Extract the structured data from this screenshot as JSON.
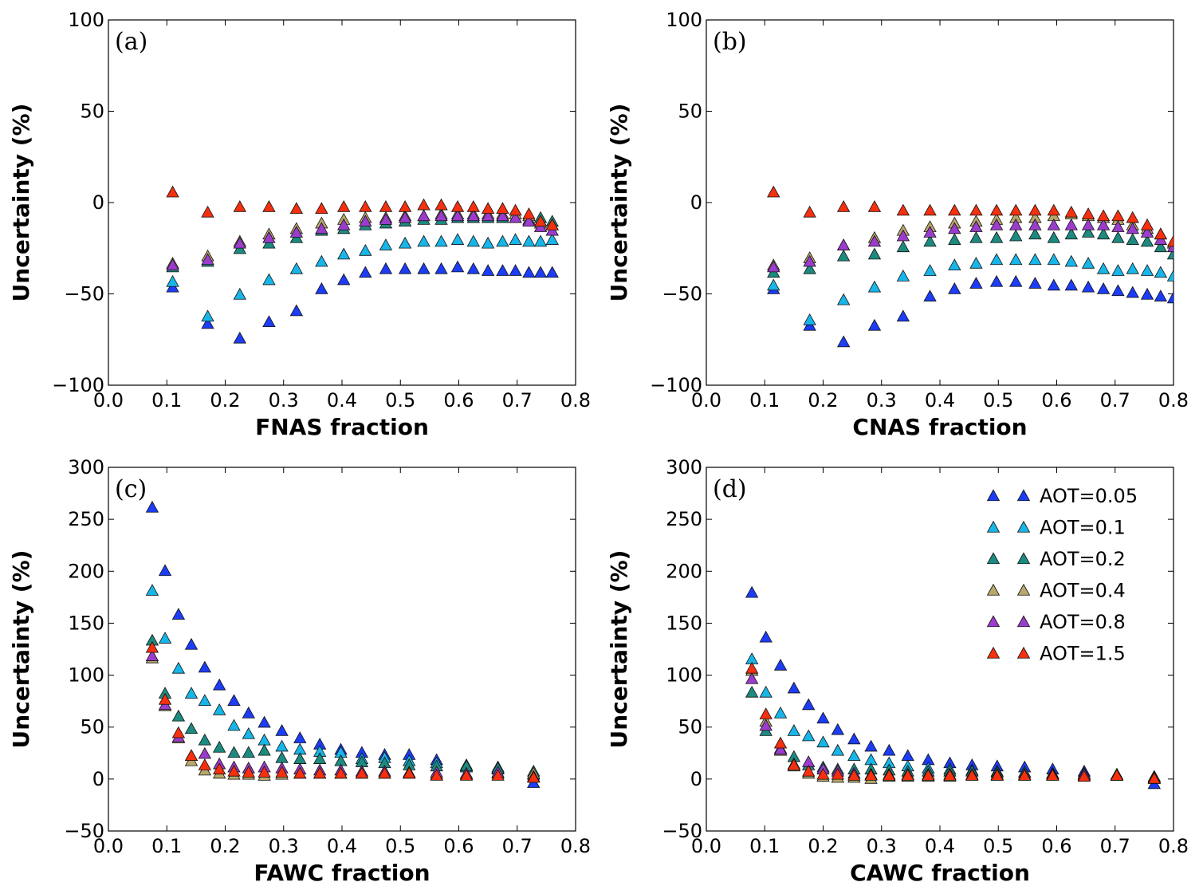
{
  "chart_data": [
    {
      "type": "scatter",
      "panel_label": "(a)",
      "xlabel": "FNAS fraction",
      "ylabel": "Uncertainty (%)",
      "xlim": [
        0.0,
        0.8
      ],
      "ylim": [
        -100,
        100
      ],
      "xticks": [
        "0.0",
        "0.1",
        "0.2",
        "0.3",
        "0.4",
        "0.5",
        "0.6",
        "0.7",
        "0.8"
      ],
      "yticks": [
        "100",
        "50",
        "0",
        "−50",
        "−100"
      ],
      "x": [
        0.11,
        0.17,
        0.225,
        0.275,
        0.322,
        0.365,
        0.403,
        0.44,
        0.475,
        0.508,
        0.54,
        0.57,
        0.598,
        0.625,
        0.65,
        0.675,
        0.697,
        0.72,
        0.74,
        0.76
      ],
      "series": [
        {
          "name": "AOT=0.05",
          "values": [
            -46,
            -66,
            -74,
            -65,
            -59,
            -47,
            -42,
            -38,
            -36,
            -36,
            -36,
            -36,
            -35,
            -36,
            -37,
            -37,
            -37,
            -38,
            -38,
            -38
          ]
        },
        {
          "name": "AOT=0.1",
          "values": [
            -43,
            -62,
            -50,
            -42,
            -36,
            -32,
            -28,
            -26,
            -23,
            -22,
            -21,
            -21,
            -20,
            -21,
            -22,
            -21,
            -20,
            -21,
            -21,
            -20
          ]
        },
        {
          "name": "AOT=0.2",
          "values": [
            -35,
            -32,
            -25,
            -22,
            -19,
            -15,
            -14,
            -12,
            -11,
            -10,
            -9,
            -9,
            -8,
            -8,
            -8,
            -8,
            -8,
            -9,
            -8,
            -10
          ]
        },
        {
          "name": "AOT=0.4",
          "values": [
            -33,
            -29,
            -21,
            -17,
            -14,
            -11,
            -9,
            -8,
            -8,
            -7,
            -7,
            -6,
            -6,
            -6,
            -6,
            -6,
            -6,
            -7,
            -11,
            -12
          ]
        },
        {
          "name": "AOT=0.8",
          "values": [
            -34,
            -31,
            -22,
            -19,
            -16,
            -14,
            -12,
            -10,
            -9,
            -8,
            -7,
            -7,
            -7,
            -7,
            -7,
            -7,
            -8,
            -10,
            -13,
            -15
          ]
        },
        {
          "name": "AOT=1.5",
          "values": [
            6,
            -5,
            -2,
            -2,
            -3,
            -3,
            -2,
            -2,
            -2,
            -2,
            -1,
            -1,
            -2,
            -2,
            -3,
            -3,
            -4,
            -6,
            -10,
            -12
          ]
        }
      ]
    },
    {
      "type": "scatter",
      "panel_label": "(b)",
      "xlabel": "CNAS fraction",
      "ylabel": "Uncertainty (%)",
      "xlim": [
        0.0,
        0.8
      ],
      "ylim": [
        -100,
        100
      ],
      "xticks": [
        "0.0",
        "0.1",
        "0.2",
        "0.3",
        "0.4",
        "0.5",
        "0.6",
        "0.7",
        "0.8"
      ],
      "yticks": [
        "100",
        "50",
        "0",
        "−50",
        "−100"
      ],
      "x": [
        0.115,
        0.177,
        0.235,
        0.288,
        0.337,
        0.383,
        0.425,
        0.462,
        0.497,
        0.53,
        0.563,
        0.595,
        0.625,
        0.654,
        0.68,
        0.705,
        0.73,
        0.755,
        0.778,
        0.8
      ],
      "series": [
        {
          "name": "AOT=0.05",
          "values": [
            -47,
            -67,
            -76,
            -67,
            -62,
            -51,
            -47,
            -44,
            -43,
            -43,
            -44,
            -45,
            -45,
            -46,
            -47,
            -48,
            -49,
            -50,
            -51,
            -52
          ]
        },
        {
          "name": "AOT=0.1",
          "values": [
            -45,
            -64,
            -53,
            -46,
            -40,
            -37,
            -34,
            -33,
            -31,
            -31,
            -31,
            -31,
            -32,
            -33,
            -36,
            -37,
            -36,
            -37,
            -38,
            -40
          ]
        },
        {
          "name": "AOT=0.2",
          "values": [
            -38,
            -36,
            -29,
            -28,
            -24,
            -21,
            -20,
            -19,
            -19,
            -18,
            -17,
            -19,
            -17,
            -16,
            -17,
            -19,
            -20,
            -21,
            -24,
            -28
          ]
        },
        {
          "name": "AOT=0.4",
          "values": [
            -34,
            -30,
            -23,
            -19,
            -15,
            -13,
            -11,
            -10,
            -9,
            -8,
            -8,
            -7,
            -6,
            -7,
            -8,
            -9,
            -12,
            -14,
            -17,
            -22
          ]
        },
        {
          "name": "AOT=0.8",
          "values": [
            -35,
            -32,
            -23,
            -21,
            -18,
            -16,
            -14,
            -13,
            -12,
            -12,
            -12,
            -12,
            -12,
            -12,
            -12,
            -13,
            -14,
            -16,
            -20,
            -24
          ]
        },
        {
          "name": "AOT=1.5",
          "values": [
            6,
            -5,
            -2,
            -2,
            -4,
            -4,
            -4,
            -4,
            -4,
            -4,
            -4,
            -4,
            -5,
            -6,
            -7,
            -7,
            -8,
            -12,
            -17,
            -21
          ]
        }
      ]
    },
    {
      "type": "scatter",
      "panel_label": "(c)",
      "xlabel": "FAWC fraction",
      "ylabel": "Uncertainty (%)",
      "xlim": [
        0.0,
        0.8
      ],
      "ylim": [
        -50,
        300
      ],
      "xticks": [
        "0.0",
        "0.1",
        "0.2",
        "0.3",
        "0.4",
        "0.5",
        "0.6",
        "0.7",
        "0.8"
      ],
      "yticks": [
        "300",
        "250",
        "200",
        "150",
        "100",
        "50",
        "0",
        "−50"
      ],
      "x": [
        0.075,
        0.097,
        0.12,
        0.142,
        0.165,
        0.19,
        0.215,
        0.24,
        0.267,
        0.297,
        0.328,
        0.362,
        0.398,
        0.434,
        0.473,
        0.515,
        0.562,
        0.613,
        0.667,
        0.728
      ],
      "series": [
        {
          "name": "AOT=0.05",
          "values": [
            262,
            201,
            159,
            130,
            108,
            91,
            76,
            64,
            55,
            47,
            40,
            34,
            29,
            26,
            24,
            24,
            19,
            14,
            12,
            -3
          ]
        },
        {
          "name": "AOT=0.1",
          "values": [
            182,
            136,
            107,
            83,
            76,
            67,
            52,
            44,
            38,
            32,
            29,
            27,
            26,
            20,
            21,
            18,
            16,
            12,
            10,
            5
          ]
        },
        {
          "name": "AOT=0.2",
          "values": [
            134,
            83,
            61,
            49,
            38,
            31,
            26,
            26,
            28,
            21,
            20,
            20,
            18,
            17,
            16,
            14,
            13,
            13,
            11,
            8
          ]
        },
        {
          "name": "AOT=0.4",
          "values": [
            117,
            71,
            40,
            18,
            9,
            6,
            5,
            5,
            4,
            5,
            6,
            6,
            6,
            6,
            6,
            6,
            5,
            5,
            6,
            6
          ]
        },
        {
          "name": "AOT=0.8",
          "values": [
            119,
            72,
            41,
            23,
            25,
            15,
            12,
            11,
            12,
            11,
            10,
            9,
            9,
            8,
            8,
            7,
            7,
            6,
            7,
            3
          ]
        },
        {
          "name": "AOT=1.5",
          "values": [
            127,
            77,
            45,
            23,
            14,
            10,
            8,
            7,
            7,
            7,
            6,
            6,
            6,
            6,
            6,
            6,
            4,
            4,
            4,
            2
          ]
        }
      ]
    },
    {
      "type": "scatter",
      "panel_label": "(d)",
      "xlabel": "CAWC fraction",
      "ylabel": "Uncertainty (%)",
      "xlim": [
        0.0,
        0.8
      ],
      "ylim": [
        -50,
        300
      ],
      "xticks": [
        "0.0",
        "0.1",
        "0.2",
        "0.3",
        "0.4",
        "0.5",
        "0.6",
        "0.7",
        "0.8"
      ],
      "yticks": [
        "300",
        "250",
        "200",
        "150",
        "100",
        "50",
        "0",
        "−50"
      ],
      "legend_position": "top-right",
      "x": [
        0.078,
        0.102,
        0.127,
        0.15,
        0.175,
        0.2,
        0.225,
        0.253,
        0.282,
        0.313,
        0.345,
        0.38,
        0.417,
        0.455,
        0.498,
        0.545,
        0.593,
        0.647,
        0.703,
        0.767
      ],
      "series": [
        {
          "name": "AOT=0.05",
          "values": [
            180,
            137,
            110,
            88,
            72,
            59,
            48,
            39,
            32,
            28,
            23,
            19,
            16,
            14,
            13,
            12,
            10,
            8,
            5,
            -4
          ]
        },
        {
          "name": "AOT=0.1",
          "values": [
            116,
            84,
            64,
            47,
            42,
            36,
            28,
            23,
            19,
            16,
            13,
            11,
            10,
            9,
            8,
            7,
            6,
            5,
            4,
            1
          ]
        },
        {
          "name": "AOT=0.2",
          "values": [
            84,
            47,
            30,
            22,
            14,
            12,
            10,
            10,
            10,
            9,
            8,
            8,
            8,
            8,
            7,
            7,
            6,
            6,
            5,
            2
          ]
        },
        {
          "name": "AOT=0.4",
          "values": [
            105,
            56,
            28,
            13,
            6,
            3,
            2,
            2,
            1,
            3,
            3,
            3,
            3,
            4,
            4,
            4,
            4,
            4,
            4,
            3
          ]
        },
        {
          "name": "AOT=0.8",
          "values": [
            97,
            52,
            29,
            15,
            17,
            10,
            8,
            6,
            5,
            5,
            5,
            5,
            5,
            5,
            5,
            5,
            5,
            5,
            4,
            2
          ]
        },
        {
          "name": "AOT=1.5",
          "values": [
            107,
            63,
            35,
            14,
            8,
            5,
            5,
            4,
            4,
            4,
            4,
            4,
            4,
            4,
            4,
            4,
            4,
            3,
            4,
            1
          ]
        }
      ]
    }
  ],
  "colors": {
    "AOT=0.05": "#1c3cf5",
    "AOT=0.1": "#18b5e8",
    "AOT=0.2": "#1d8a80",
    "AOT=0.4": "#b8a86a",
    "AOT=0.8": "#9b3ccc",
    "AOT=1.5": "#f5300e"
  }
}
